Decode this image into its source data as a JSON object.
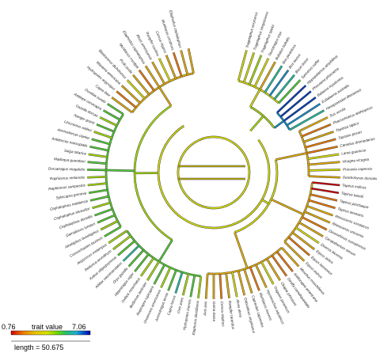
{
  "legend": {
    "min_label": "0.76",
    "max_label": "7.06",
    "title": "trait value",
    "length_label": "length = 50.675",
    "colors": [
      "#d40000",
      "#f07a00",
      "#e8c200",
      "#d8e000",
      "#a0e000",
      "#30d040",
      "#20c0c0",
      "#0050d0",
      "#0000a0"
    ]
  },
  "tips": [
    "Tragelaphus eurycerus",
    "Tragelaphus strepsiceros",
    "Tragelaphus spekii",
    "Taurotragus oryx",
    "Bubalus bubalis",
    "Bos javanicus",
    "Bos taurus",
    "Bison bison",
    "Syncerus caffer",
    "Hippopotamus amphibius",
    "Phocoena phocoena",
    "Balaena mysticetus",
    "Eubalaena australis",
    "Hexaprotodon liberiensis",
    "Sus scrofa",
    "Phacochoerus aethiopicus",
    "Tayassu tajacu",
    "Tayassu pecari",
    "Camelus dromedarius",
    "Lama guanicoe",
    "Vicugna vicugna",
    "Procavia capensis",
    "Dendrohyrax dorsalis",
    "Tapirus indicus",
    "Tapirus bairdii",
    "Tapirus pinchaque",
    "Tapirus terrestris",
    "Rhinoceros sondaicus",
    "Rhinoceros unicornis",
    "Dicerorhinus sumatrensis",
    "Ceratotherium simum",
    "Diceros bicornis",
    "Equus zebra",
    "Equus hemionus",
    "Equus asinus",
    "Moschus moschiferus",
    "Antilocapra americana",
    "Giraffa camelopardalis",
    "Okapia johnstoni",
    "Tragulus javanicus",
    "Hyemoschus aquaticus",
    "Muntiacus reevesi",
    "Capreolus capreolus",
    "Odocoileus virginianus",
    "Alces alces",
    "Rangifer tarandus",
    "Cervus elaphus",
    "Dama dama",
    "Axis axis",
    "Elaphurus davidianus",
    "Hydropotes inermis",
    "Ovis aries",
    "Capra hircus",
    "Ammotragus lervia",
    "Oreamnos americanus",
    "Rupicapra rupicapra",
    "Budorcas taxicolor",
    "Ovibos moschatus",
    "Hippotragus niger",
    "Oryx gazella",
    "Addax nasomaculatus",
    "Kobus ellipsiprymnus",
    "Redunca arundinum",
    "Aepyceros melampus",
    "Connochaetes taurinus",
    "Alcelaphus buselaphus",
    "Damaliscus lunatus",
    "Cephalophus dorsalis",
    "Cephalophus silvicultor",
    "Cephalophus natalensis",
    "Sylvicapra grimmia",
    "Raphicerus campestris",
    "Raphicerus melanotis",
    "Dorcatragus megalotis",
    "Madoqua guentheri",
    "Saiga tatarica",
    "Antidorcas marsupialis",
    "Ammodorcas clarkei",
    "Litocranius walleri",
    "Nanger granti",
    "Gazella dorcas",
    "Antilope cervicapra",
    "Ourebia ourebi",
    "Capra ibex",
    "Hydropotes argyropus",
    "Mazama americana",
    "Blastocerus dichotomus",
    "Pudu puda",
    "Muntiacus muntjak",
    "Elaphodus cephalophus",
    "Alces americanus",
    "Rangifer caribou",
    "Cervus nippon",
    "Muntiacus crinifrons",
    "Elaphodus cephalophus"
  ]
}
